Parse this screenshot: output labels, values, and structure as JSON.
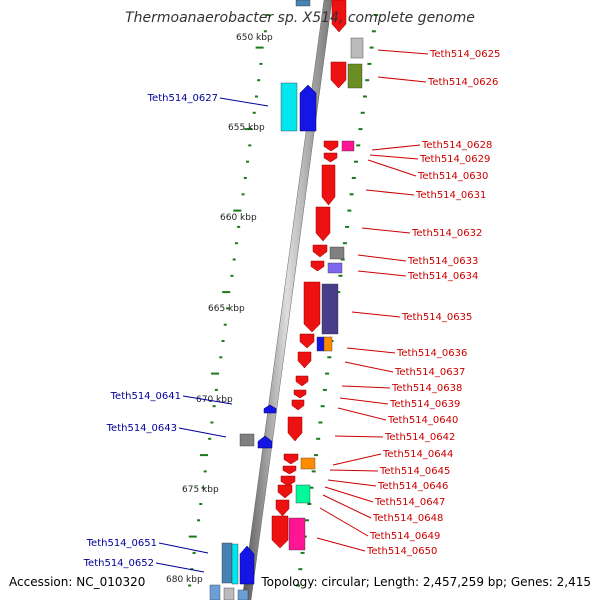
{
  "title": "Thermoanaerobacter sp. X514, complete genome",
  "accession": "Accession: NC_010320",
  "topology": "Topology: circular; Length: 2,457,259 bp; Genes: 2,415",
  "colors": {
    "red": "#ee1111",
    "blue": "#1515e6",
    "forward_label": "#000099",
    "reverse_label": "#cc0000",
    "axis": "#888888",
    "tick": "#1a7a1a"
  },
  "kbp_ticks": [
    "650 kbp",
    "655 kbp",
    "660 kbp",
    "665 kbp",
    "670 kbp",
    "675 kbp",
    "680 kbp"
  ],
  "genes": [
    "Teth514_0625",
    "Teth514_0626",
    "Teth514_0627",
    "Teth514_0628",
    "Teth514_0629",
    "Teth514_0630",
    "Teth514_0631",
    "Teth514_0632",
    "Teth514_0633",
    "Teth514_0634",
    "Teth514_0635",
    "Teth514_0636",
    "Teth514_0637",
    "Teth514_0638",
    "Teth514_0639",
    "Teth514_0640",
    "Teth514_0641",
    "Teth514_0642",
    "Teth514_0643",
    "Teth514_0644",
    "Teth514_0645",
    "Teth514_0646",
    "Teth514_0647",
    "Teth514_0648",
    "Teth514_0649",
    "Teth514_0650",
    "Teth514_0651",
    "Teth514_0652"
  ]
}
